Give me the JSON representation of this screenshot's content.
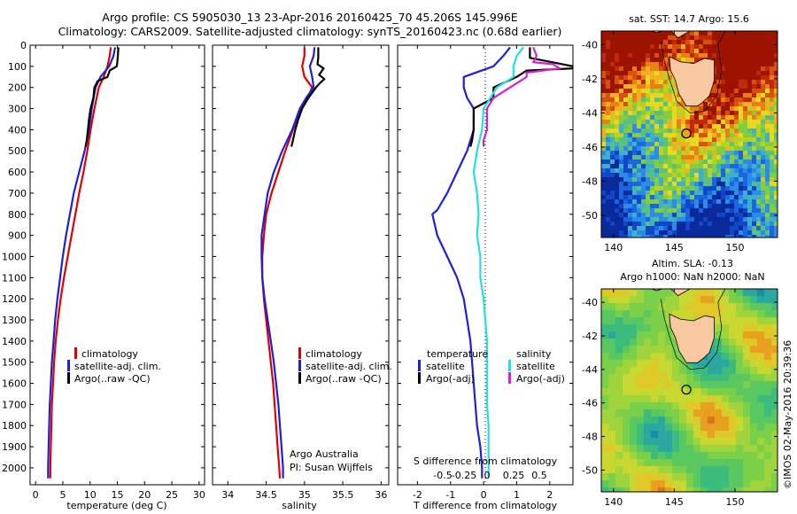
{
  "header": {
    "line1": "Argo profile: CS 5905030_13 23-Apr-2016 20160425_70 45.206S 145.996E",
    "line2": "Climatology: CARS2009. Satellite-adjusted climatology: synTS_20160423.nc (0.68d earlier)"
  },
  "colors": {
    "climatology": "#e00000",
    "satellite": "#1f1fd6",
    "argo": "#000000",
    "sal_satellite": "#20e0e0",
    "sal_argo": "#d820d0"
  },
  "chart_data": [
    {
      "type": "line",
      "id": "temperature",
      "xlabel": "temperature (deg C)",
      "ylabel": "",
      "xlim": [
        -1,
        31
      ],
      "ylim": [
        2080,
        0
      ],
      "xticks": [
        0,
        5,
        10,
        15,
        20,
        25,
        30
      ],
      "yticks": [
        0,
        100,
        200,
        300,
        400,
        500,
        600,
        700,
        800,
        900,
        1000,
        1100,
        1200,
        1300,
        1400,
        1500,
        1600,
        1700,
        1800,
        1900,
        2000
      ],
      "legend": [
        "climatology",
        "satellite-adj. clim.",
        "Argo(..raw -QC)"
      ],
      "series": [
        {
          "name": "climatology",
          "color": "#e00000",
          "points": [
            [
              13.8,
              10
            ],
            [
              13.6,
              50
            ],
            [
              13.2,
              100
            ],
            [
              12.5,
              150
            ],
            [
              11.6,
              200
            ],
            [
              10.8,
              300
            ],
            [
              10.1,
              400
            ],
            [
              9.5,
              500
            ],
            [
              8.8,
              600
            ],
            [
              8.0,
              700
            ],
            [
              7.3,
              800
            ],
            [
              6.6,
              900
            ],
            [
              5.9,
              1000
            ],
            [
              5.2,
              1100
            ],
            [
              4.6,
              1200
            ],
            [
              4.1,
              1300
            ],
            [
              3.7,
              1400
            ],
            [
              3.4,
              1500
            ],
            [
              3.2,
              1600
            ],
            [
              3.0,
              1700
            ],
            [
              2.9,
              1800
            ],
            [
              2.8,
              1900
            ],
            [
              2.7,
              2000
            ],
            [
              2.7,
              2050
            ]
          ]
        },
        {
          "name": "satellite-adj. clim.",
          "color": "#1f1fd6",
          "points": [
            [
              14.6,
              10
            ],
            [
              14.3,
              50
            ],
            [
              13.5,
              100
            ],
            [
              11.9,
              150
            ],
            [
              11.0,
              200
            ],
            [
              10.3,
              300
            ],
            [
              9.8,
              400
            ],
            [
              9.0,
              500
            ],
            [
              8.0,
              600
            ],
            [
              7.0,
              700
            ],
            [
              6.3,
              800
            ],
            [
              5.6,
              900
            ],
            [
              5.0,
              1000
            ],
            [
              4.5,
              1100
            ],
            [
              4.0,
              1200
            ],
            [
              3.6,
              1300
            ],
            [
              3.3,
              1400
            ],
            [
              3.0,
              1500
            ],
            [
              2.8,
              1600
            ],
            [
              2.6,
              1700
            ],
            [
              2.5,
              1800
            ],
            [
              2.4,
              1900
            ],
            [
              2.3,
              2000
            ],
            [
              2.3,
              2050
            ]
          ]
        },
        {
          "name": "Argo(..raw -QC)",
          "color": "#000000",
          "points": [
            [
              15.2,
              10
            ],
            [
              15.1,
              50
            ],
            [
              15.0,
              80
            ],
            [
              14.9,
              100
            ],
            [
              13.6,
              120
            ],
            [
              13.2,
              150
            ],
            [
              11.4,
              170
            ],
            [
              10.8,
              200
            ],
            [
              10.6,
              250
            ],
            [
              10.1,
              300
            ],
            [
              9.8,
              350
            ],
            [
              9.6,
              400
            ],
            [
              9.4,
              450
            ],
            [
              9.2,
              480
            ]
          ]
        }
      ]
    },
    {
      "type": "line",
      "id": "salinity",
      "xlabel": "salinity",
      "ylabel": "",
      "xlim": [
        33.8,
        36.1
      ],
      "ylim": [
        2080,
        0
      ],
      "xticks": [
        34,
        34.5,
        35,
        35.5,
        36
      ],
      "legend": [
        "climatology",
        "satellite-adj. clim.",
        "Argo(..raw -QC)"
      ],
      "annotation": [
        "Argo Australia",
        "PI: Susan Wijffels"
      ],
      "series": [
        {
          "name": "climatology",
          "color": "#e00000",
          "points": [
            [
              35.0,
              10
            ],
            [
              35.0,
              50
            ],
            [
              34.97,
              100
            ],
            [
              35.0,
              150
            ],
            [
              35.1,
              200
            ],
            [
              35.04,
              250
            ],
            [
              34.95,
              300
            ],
            [
              34.85,
              400
            ],
            [
              34.75,
              500
            ],
            [
              34.66,
              600
            ],
            [
              34.57,
              700
            ],
            [
              34.5,
              800
            ],
            [
              34.47,
              900
            ],
            [
              34.45,
              1000
            ],
            [
              34.45,
              1100
            ],
            [
              34.47,
              1200
            ],
            [
              34.5,
              1300
            ],
            [
              34.53,
              1400
            ],
            [
              34.56,
              1500
            ],
            [
              34.59,
              1600
            ],
            [
              34.61,
              1700
            ],
            [
              34.63,
              1800
            ],
            [
              34.65,
              1900
            ],
            [
              34.67,
              2000
            ],
            [
              34.68,
              2050
            ]
          ]
        },
        {
          "name": "satellite-adj. clim.",
          "color": "#1f1fd6",
          "points": [
            [
              35.13,
              10
            ],
            [
              35.12,
              50
            ],
            [
              35.07,
              100
            ],
            [
              35.1,
              150
            ],
            [
              35.12,
              200
            ],
            [
              35.02,
              250
            ],
            [
              34.94,
              300
            ],
            [
              34.84,
              400
            ],
            [
              34.71,
              500
            ],
            [
              34.6,
              600
            ],
            [
              34.52,
              700
            ],
            [
              34.48,
              800
            ],
            [
              34.44,
              900
            ],
            [
              34.44,
              1000
            ],
            [
              34.45,
              1100
            ],
            [
              34.48,
              1200
            ],
            [
              34.52,
              1300
            ],
            [
              34.56,
              1400
            ],
            [
              34.6,
              1500
            ],
            [
              34.63,
              1600
            ],
            [
              34.66,
              1700
            ],
            [
              34.68,
              1800
            ],
            [
              34.7,
              1900
            ],
            [
              34.72,
              2000
            ],
            [
              34.72,
              2050
            ]
          ]
        },
        {
          "name": "Argo(..raw -QC)",
          "color": "#000000",
          "points": [
            [
              35.18,
              10
            ],
            [
              35.18,
              60
            ],
            [
              35.17,
              90
            ],
            [
              35.25,
              110
            ],
            [
              35.19,
              140
            ],
            [
              35.26,
              160
            ],
            [
              35.2,
              180
            ],
            [
              35.15,
              200
            ],
            [
              35.05,
              250
            ],
            [
              34.97,
              300
            ],
            [
              34.92,
              350
            ],
            [
              34.88,
              400
            ],
            [
              34.85,
              450
            ],
            [
              34.83,
              480
            ]
          ]
        }
      ]
    },
    {
      "type": "line",
      "id": "differences",
      "xlabel": "T difference from climatology",
      "ylabel": "",
      "title": "S difference from climatology",
      "xlim": [
        -2.6,
        2.7
      ],
      "ylim": [
        2080,
        0
      ],
      "xticks": [
        -2,
        -1,
        0,
        1,
        2
      ],
      "top_ticks": [
        "-0.5",
        "-0.25",
        "0",
        "0.25",
        "0.5"
      ],
      "legend_temperature": [
        "temperature",
        "satellite",
        "Argo(-adj)"
      ],
      "legend_salinity": [
        "salinity",
        "satellite",
        "Argo(-adj)"
      ],
      "series": [
        {
          "name": "temperature satellite",
          "color": "#1f1fd6",
          "points": [
            [
              0.8,
              10
            ],
            [
              0.6,
              50
            ],
            [
              0.3,
              100
            ],
            [
              -0.6,
              150
            ],
            [
              -0.6,
              200
            ],
            [
              -0.5,
              250
            ],
            [
              -0.3,
              300
            ],
            [
              -0.3,
              400
            ],
            [
              -0.5,
              500
            ],
            [
              -0.8,
              600
            ],
            [
              -1.1,
              700
            ],
            [
              -1.4,
              780
            ],
            [
              -1.55,
              800
            ],
            [
              -1.4,
              900
            ],
            [
              -1.1,
              1000
            ],
            [
              -0.8,
              1100
            ],
            [
              -0.6,
              1200
            ],
            [
              -0.5,
              1300
            ],
            [
              -0.4,
              1400
            ],
            [
              -0.35,
              1500
            ],
            [
              -0.3,
              1600
            ],
            [
              -0.25,
              1700
            ],
            [
              -0.2,
              1800
            ],
            [
              -0.1,
              1900
            ],
            [
              -0.05,
              2000
            ],
            [
              -0.05,
              2050
            ]
          ]
        },
        {
          "name": "temperature Argo(-adj)",
          "color": "#000000",
          "points": [
            [
              1.4,
              10
            ],
            [
              1.4,
              60
            ],
            [
              2.7,
              100
            ],
            [
              2.7,
              110
            ],
            [
              1.3,
              120
            ],
            [
              1.0,
              150
            ],
            [
              0.3,
              200
            ],
            [
              0.3,
              250
            ],
            [
              -0.3,
              300
            ],
            [
              -0.3,
              400
            ],
            [
              -0.35,
              450
            ],
            [
              -0.4,
              480
            ]
          ]
        },
        {
          "name": "salinity satellite",
          "color": "#20e0e0",
          "points": [
            [
              1.2,
              10
            ],
            [
              1.0,
              50
            ],
            [
              0.9,
              100
            ],
            [
              0.9,
              150
            ],
            [
              0.4,
              200
            ],
            [
              0.2,
              250
            ],
            [
              0.0,
              300
            ],
            [
              -0.05,
              400
            ],
            [
              -0.2,
              500
            ],
            [
              -0.3,
              600
            ],
            [
              -0.2,
              700
            ],
            [
              -0.15,
              800
            ],
            [
              -0.2,
              900
            ],
            [
              -0.1,
              1000
            ],
            [
              -0.1,
              1100
            ],
            [
              0.0,
              1200
            ],
            [
              0.05,
              1300
            ],
            [
              0.1,
              1400
            ],
            [
              0.1,
              1500
            ],
            [
              0.1,
              1600
            ],
            [
              0.1,
              1700
            ],
            [
              0.15,
              1800
            ],
            [
              0.15,
              1900
            ],
            [
              0.15,
              2000
            ],
            [
              0.15,
              2050
            ]
          ]
        },
        {
          "name": "salinity Argo(-adj)",
          "color": "#d820d0",
          "points": [
            [
              1.5,
              10
            ],
            [
              1.6,
              50
            ],
            [
              1.5,
              80
            ],
            [
              2.1,
              90
            ],
            [
              2.3,
              110
            ],
            [
              1.3,
              130
            ],
            [
              1.3,
              150
            ],
            [
              1.0,
              180
            ],
            [
              0.8,
              200
            ],
            [
              0.3,
              250
            ],
            [
              0.1,
              300
            ],
            [
              0.1,
              400
            ],
            [
              0.0,
              450
            ],
            [
              0.0,
              480
            ]
          ]
        }
      ]
    },
    {
      "type": "heatmap",
      "id": "sst_map",
      "title": "sat. SST: 14.7 Argo: 15.6",
      "xlim": [
        139,
        153.5
      ],
      "ylim": [
        -51.3,
        -39.2
      ],
      "xticks": [
        140,
        145,
        150
      ],
      "yticks": [
        -40,
        -42,
        -44,
        -46,
        -48,
        -50
      ],
      "marker": [
        145.996,
        -45.206
      ]
    },
    {
      "type": "heatmap",
      "id": "sla_map",
      "title_line1": "Altim. SLA: -0.13",
      "title_line2": "Argo h1000: NaN h2000: NaN",
      "xlim": [
        139,
        153.5
      ],
      "ylim": [
        -51.3,
        -39.2
      ],
      "xticks": [
        140,
        145,
        150
      ],
      "yticks": [
        -40,
        -42,
        -44,
        -46,
        -48,
        -50
      ],
      "marker": [
        145.996,
        -45.206
      ]
    }
  ],
  "credit": "©IMOS 02-May-2016 20:39:36"
}
